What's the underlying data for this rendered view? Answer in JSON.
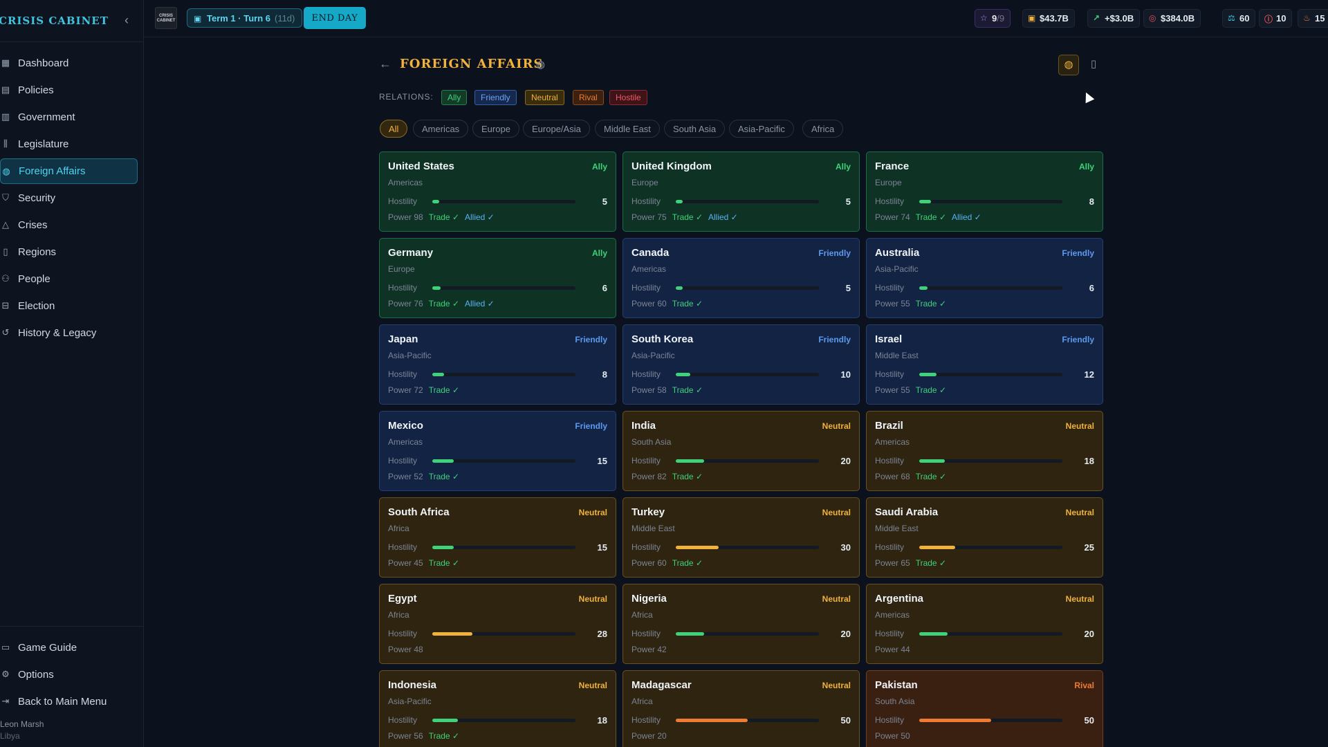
{
  "app": {
    "title": "CRISIS CABINET",
    "logo_text": "CRISIS CABINET"
  },
  "sidebar": {
    "items": [
      {
        "id": "dashboard",
        "label": "Dashboard",
        "icon": "grid-icon",
        "glyph": "▦"
      },
      {
        "id": "policies",
        "label": "Policies",
        "icon": "document-icon",
        "glyph": "▤"
      },
      {
        "id": "government",
        "label": "Government",
        "icon": "building-icon",
        "glyph": "▥"
      },
      {
        "id": "legislature",
        "label": "Legislature",
        "icon": "columns-icon",
        "glyph": "⫼"
      },
      {
        "id": "foreign-affairs",
        "label": "Foreign Affairs",
        "icon": "globe-icon",
        "glyph": "◍",
        "active": true
      },
      {
        "id": "security",
        "label": "Security",
        "icon": "shield-icon",
        "glyph": "⛉"
      },
      {
        "id": "crises",
        "label": "Crises",
        "icon": "warning-icon",
        "glyph": "△"
      },
      {
        "id": "regions",
        "label": "Regions",
        "icon": "map-icon",
        "glyph": "▯"
      },
      {
        "id": "people",
        "label": "People",
        "icon": "people-icon",
        "glyph": "⚇"
      },
      {
        "id": "election",
        "label": "Election",
        "icon": "ballot-icon",
        "glyph": "⊟"
      },
      {
        "id": "history",
        "label": "History & Legacy",
        "icon": "history-icon",
        "glyph": "↺"
      }
    ],
    "bottom_items": [
      {
        "id": "guide",
        "label": "Game Guide",
        "icon": "book-icon",
        "glyph": "▭"
      },
      {
        "id": "options",
        "label": "Options",
        "icon": "gear-icon",
        "glyph": "⚙"
      },
      {
        "id": "main-menu",
        "label": "Back to Main Menu",
        "icon": "exit-icon",
        "glyph": "⇥"
      }
    ],
    "player_name": "Leon Marsh",
    "player_country": "Libya"
  },
  "topbar": {
    "term": "Term 1 · Turn 6",
    "days": "(11d)",
    "end_day": "END DAY",
    "stats": {
      "approval": "9",
      "approval_max": "/9",
      "treasury": "$43.7B",
      "income": "+$3.0B",
      "debt": "$384.0B",
      "stability": "60",
      "alerts": "10",
      "unrest": "15"
    }
  },
  "page": {
    "title": "FOREIGN AFFAIRS",
    "relations_label": "RELATIONS:",
    "relations": [
      "Ally",
      "Friendly",
      "Neutral",
      "Rival",
      "Hostile"
    ],
    "regions": [
      "All",
      "Americas",
      "Europe",
      "Europe/Asia",
      "Middle East",
      "South Asia",
      "Asia-Pacific",
      "Africa"
    ],
    "active_region": "All"
  },
  "colors": {
    "accent": "#f0b23a",
    "cyan": "#3fc4df",
    "ally": "#3fd27a",
    "friendly": "#5b9af0",
    "neutral": "#f0b23a",
    "rival": "#f07c32",
    "hostile": "#e0505a"
  },
  "labels": {
    "hostility": "Hostility",
    "power_prefix": "Power",
    "trade": "Trade ✓",
    "allied": "Allied ✓"
  },
  "countries": [
    {
      "name": "United States",
      "status": "Ally",
      "region": "Americas",
      "hostility": 5,
      "power": 98,
      "trade": true,
      "allied": true
    },
    {
      "name": "United Kingdom",
      "status": "Ally",
      "region": "Europe",
      "hostility": 5,
      "power": 75,
      "trade": true,
      "allied": true
    },
    {
      "name": "France",
      "status": "Ally",
      "region": "Europe",
      "hostility": 8,
      "power": 74,
      "trade": true,
      "allied": true
    },
    {
      "name": "Germany",
      "status": "Ally",
      "region": "Europe",
      "hostility": 6,
      "power": 76,
      "trade": true,
      "allied": true
    },
    {
      "name": "Canada",
      "status": "Friendly",
      "region": "Americas",
      "hostility": 5,
      "power": 60,
      "trade": true,
      "allied": false
    },
    {
      "name": "Australia",
      "status": "Friendly",
      "region": "Asia-Pacific",
      "hostility": 6,
      "power": 55,
      "trade": true,
      "allied": false
    },
    {
      "name": "Japan",
      "status": "Friendly",
      "region": "Asia-Pacific",
      "hostility": 8,
      "power": 72,
      "trade": true,
      "allied": false
    },
    {
      "name": "South Korea",
      "status": "Friendly",
      "region": "Asia-Pacific",
      "hostility": 10,
      "power": 58,
      "trade": true,
      "allied": false
    },
    {
      "name": "Israel",
      "status": "Friendly",
      "region": "Middle East",
      "hostility": 12,
      "power": 55,
      "trade": true,
      "allied": false
    },
    {
      "name": "Mexico",
      "status": "Friendly",
      "region": "Americas",
      "hostility": 15,
      "power": 52,
      "trade": true,
      "allied": false
    },
    {
      "name": "India",
      "status": "Neutral",
      "region": "South Asia",
      "hostility": 20,
      "power": 82,
      "trade": true,
      "allied": false
    },
    {
      "name": "Brazil",
      "status": "Neutral",
      "region": "Americas",
      "hostility": 18,
      "power": 68,
      "trade": true,
      "allied": false
    },
    {
      "name": "South Africa",
      "status": "Neutral",
      "region": "Africa",
      "hostility": 15,
      "power": 45,
      "trade": true,
      "allied": false
    },
    {
      "name": "Turkey",
      "status": "Neutral",
      "region": "Middle East",
      "hostility": 30,
      "power": 60,
      "trade": true,
      "allied": false
    },
    {
      "name": "Saudi Arabia",
      "status": "Neutral",
      "region": "Middle East",
      "hostility": 25,
      "power": 65,
      "trade": true,
      "allied": false
    },
    {
      "name": "Egypt",
      "status": "Neutral",
      "region": "Africa",
      "hostility": 28,
      "power": 48,
      "trade": false,
      "allied": false
    },
    {
      "name": "Nigeria",
      "status": "Neutral",
      "region": "Africa",
      "hostility": 20,
      "power": 42,
      "trade": false,
      "allied": false
    },
    {
      "name": "Argentina",
      "status": "Neutral",
      "region": "Americas",
      "hostility": 20,
      "power": 44,
      "trade": false,
      "allied": false
    },
    {
      "name": "Indonesia",
      "status": "Neutral",
      "region": "Asia-Pacific",
      "hostility": 18,
      "power": 56,
      "trade": true,
      "allied": false
    },
    {
      "name": "Madagascar",
      "status": "Neutral",
      "region": "Africa",
      "hostility": 50,
      "power": 20,
      "trade": false,
      "allied": false
    },
    {
      "name": "Pakistan",
      "status": "Rival",
      "region": "South Asia",
      "hostility": 50,
      "power": 50,
      "trade": false,
      "allied": false
    }
  ]
}
